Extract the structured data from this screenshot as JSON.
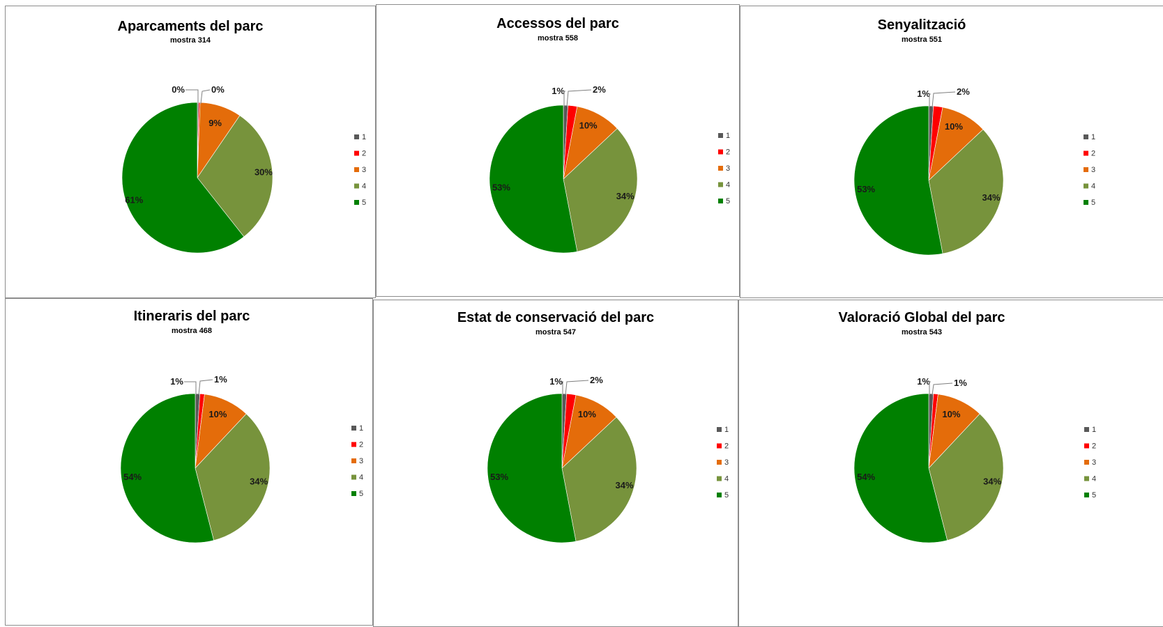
{
  "chart_data": [
    {
      "type": "pie",
      "title": "Aparcaments del parc",
      "subtitle": "mostra 314",
      "categories": [
        "1",
        "2",
        "3",
        "4",
        "5"
      ],
      "values": [
        0,
        0,
        9,
        30,
        61
      ],
      "labels": [
        "0%",
        "0%",
        "9%",
        "30%",
        "61%"
      ],
      "legend": "right"
    },
    {
      "type": "pie",
      "title": "Accessos del parc",
      "subtitle": "mostra 558",
      "categories": [
        "1",
        "2",
        "3",
        "4",
        "5"
      ],
      "values": [
        1,
        2,
        10,
        34,
        53
      ],
      "labels": [
        "1%",
        "2%",
        "10%",
        "34%",
        "53%"
      ],
      "legend": "right"
    },
    {
      "type": "pie",
      "title": "Senyalització",
      "subtitle": "mostra 551",
      "categories": [
        "1",
        "2",
        "3",
        "4",
        "5"
      ],
      "values": [
        1,
        2,
        10,
        34,
        53
      ],
      "labels": [
        "1%",
        "2%",
        "10%",
        "34%",
        "53%"
      ],
      "legend": "right"
    },
    {
      "type": "pie",
      "title": "Itineraris del parc",
      "subtitle": "mostra 468",
      "categories": [
        "1",
        "2",
        "3",
        "4",
        "5"
      ],
      "values": [
        1,
        1,
        10,
        34,
        54
      ],
      "labels": [
        "1%",
        "1%",
        "10%",
        "34%",
        "54%"
      ],
      "legend": "right"
    },
    {
      "type": "pie",
      "title": "Estat de conservació del parc",
      "subtitle": "mostra 547",
      "categories": [
        "1",
        "2",
        "3",
        "4",
        "5"
      ],
      "values": [
        1,
        2,
        10,
        34,
        53
      ],
      "labels": [
        "1%",
        "2%",
        "10%",
        "34%",
        "53%"
      ],
      "legend": "right"
    },
    {
      "type": "pie",
      "title": "Valoració Global del parc",
      "subtitle": "mostra 543",
      "categories": [
        "1",
        "2",
        "3",
        "4",
        "5"
      ],
      "values": [
        1,
        1,
        10,
        34,
        54
      ],
      "labels": [
        "1%",
        "1%",
        "10%",
        "34%",
        "54%"
      ],
      "legend": "right"
    }
  ],
  "colors": [
    "#595959",
    "#ff0000",
    "#e46c0a",
    "#77933c",
    "#008000"
  ]
}
